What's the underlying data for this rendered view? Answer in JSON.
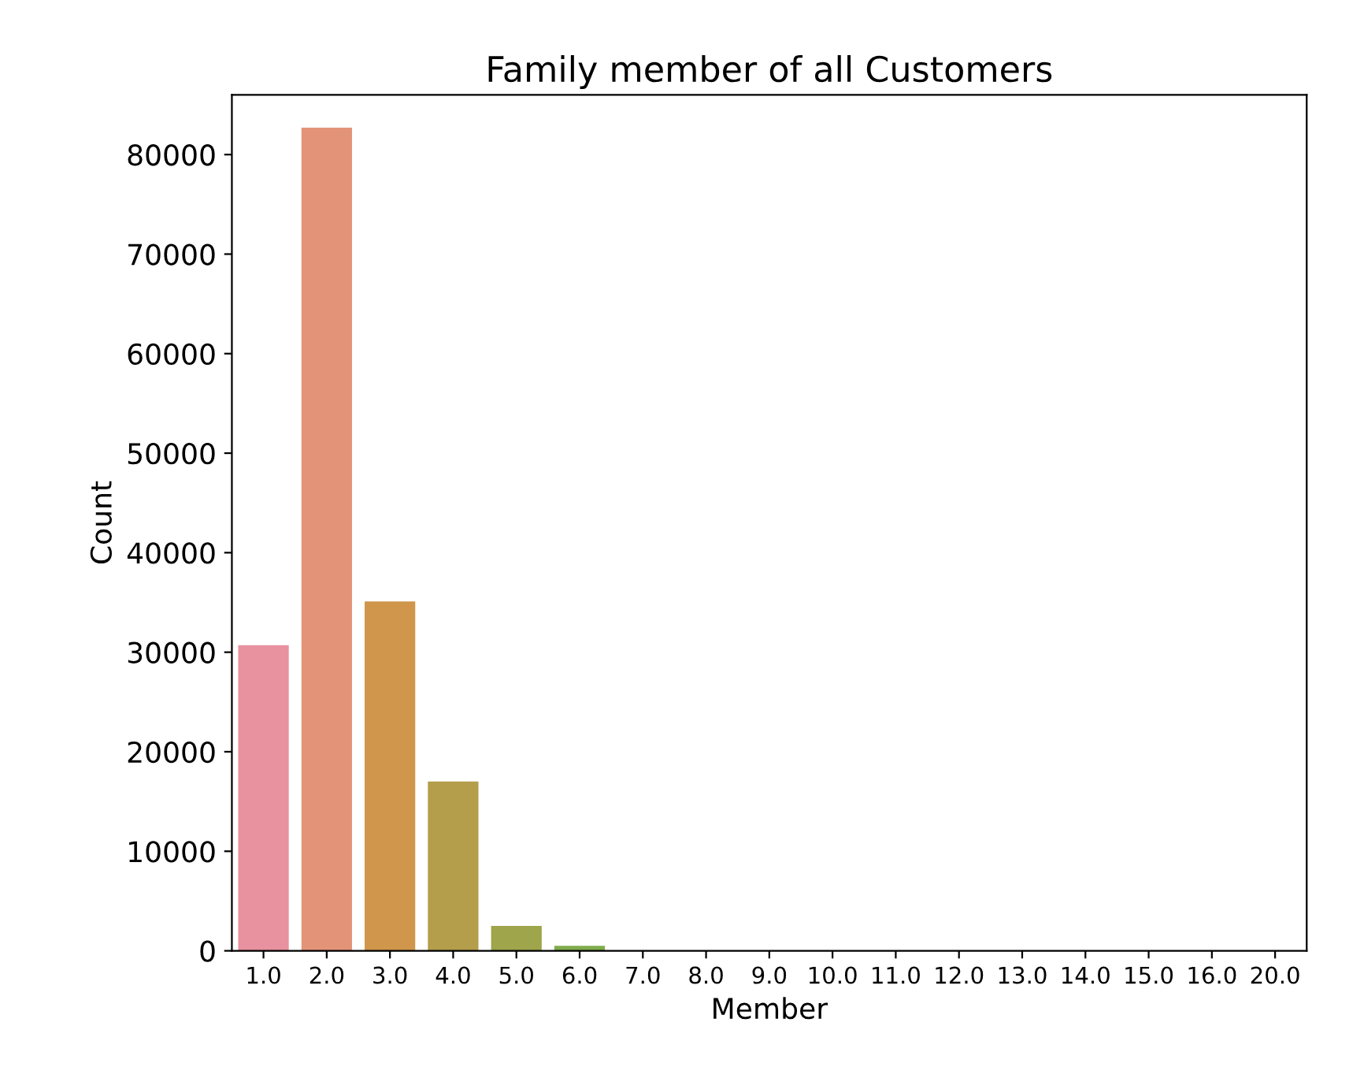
{
  "chart_data": {
    "type": "bar",
    "title": "Family member of all Customers",
    "xlabel": "Member",
    "ylabel": "Count",
    "categories": [
      "1.0",
      "2.0",
      "3.0",
      "4.0",
      "5.0",
      "6.0",
      "7.0",
      "8.0",
      "9.0",
      "10.0",
      "11.0",
      "12.0",
      "13.0",
      "14.0",
      "15.0",
      "16.0",
      "20.0"
    ],
    "values": [
      30700,
      82700,
      35100,
      17000,
      2500,
      500,
      0,
      0,
      0,
      0,
      0,
      0,
      0,
      0,
      0,
      0,
      0
    ],
    "colors": [
      "#e8919f",
      "#e39478",
      "#cf964c",
      "#b49d4b",
      "#9ea54a",
      "#7fac4b",
      "#4eb05f",
      "#50ae89",
      "#52ac9c",
      "#53aaa9",
      "#55a8b7",
      "#58a5c9",
      "#7a9edf",
      "#a595df",
      "#c58bdf",
      "#df84c9",
      "#e58bb3"
    ],
    "ylim": [
      0,
      86000
    ],
    "yticks": [
      0,
      10000,
      20000,
      30000,
      40000,
      50000,
      60000,
      70000,
      80000
    ],
    "grid": false
  }
}
